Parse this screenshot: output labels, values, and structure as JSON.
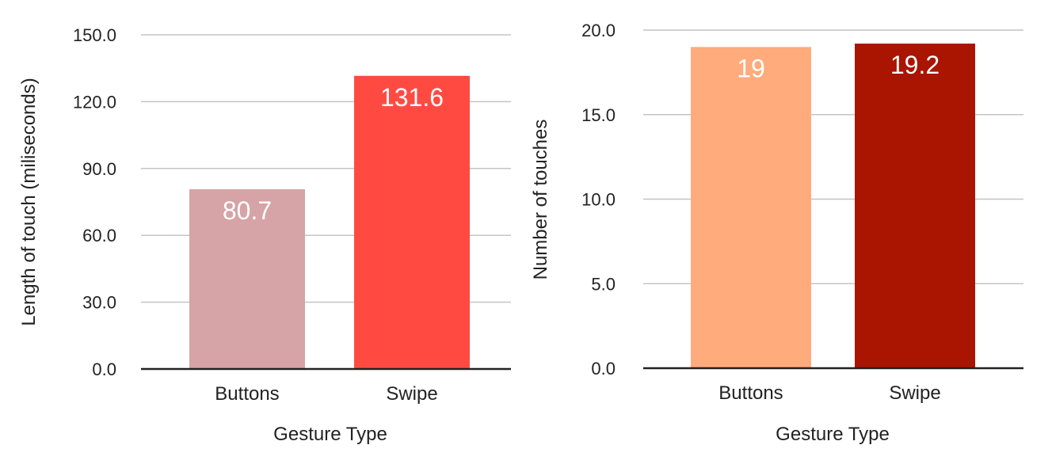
{
  "chart_data": [
    {
      "type": "bar",
      "categories": [
        "Buttons",
        "Swipe"
      ],
      "values": [
        80.7,
        131.6
      ],
      "value_labels": [
        "80.7",
        "131.6"
      ],
      "colors": [
        "#d6a3a6",
        "#ff4a42"
      ],
      "xlabel": "Gesture Type",
      "ylabel": "Length of touch (miliseconds)",
      "ylim": [
        0,
        150
      ],
      "yticks": [
        "0.0",
        "30.0",
        "60.0",
        "90.0",
        "120.0",
        "150.0"
      ],
      "grid": true
    },
    {
      "type": "bar",
      "categories": [
        "Buttons",
        "Swipe"
      ],
      "values": [
        19,
        19.2
      ],
      "value_labels": [
        "19",
        "19.2"
      ],
      "colors": [
        "#ffab7c",
        "#a91500"
      ],
      "xlabel": "Gesture Type",
      "ylabel": "Number of touches",
      "ylim": [
        0,
        20
      ],
      "yticks": [
        "0.0",
        "5.0",
        "10.0",
        "15.0",
        "20.0"
      ],
      "grid": true
    }
  ]
}
